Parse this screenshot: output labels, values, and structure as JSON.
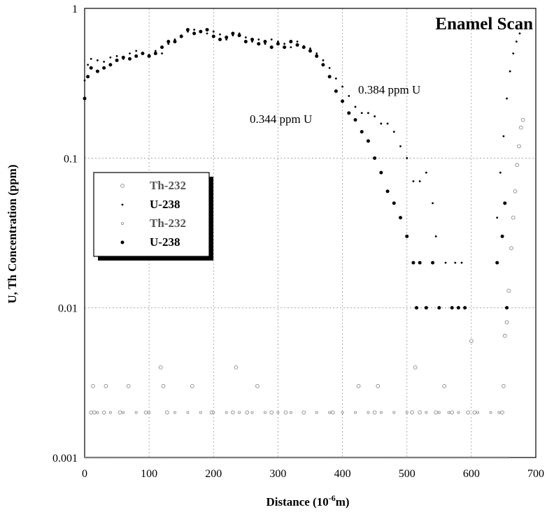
{
  "chart_data": {
    "type": "scatter",
    "title": "Enamel Scan",
    "xlabel_main": "Distance (10",
    "xlabel_sup": "-6",
    "xlabel_end": "m)",
    "ylabel": "U, Th Concentration (ppm)",
    "xlim": [
      0,
      700
    ],
    "ylim": [
      0.001,
      1
    ],
    "y_scale": "log",
    "grid": true,
    "legend_position": "left-middle",
    "x_ticks": [
      "0",
      "100",
      "200",
      "300",
      "400",
      "500",
      "600",
      "700"
    ],
    "y_ticks": [
      "0.001",
      "0.01",
      "0.1",
      "1"
    ],
    "annotations": [
      "0.384 ppm U",
      "0.344 ppm U"
    ],
    "colors": {
      "th": "#888888",
      "u": "#000000",
      "grid": "#999999"
    },
    "series": [
      {
        "name": "Th-232",
        "marker": "open-circle",
        "points": [
          [
            10,
            0.002
          ],
          [
            13,
            0.003
          ],
          [
            15,
            0.002
          ],
          [
            30,
            0.002
          ],
          [
            33,
            0.003
          ],
          [
            55,
            0.002
          ],
          [
            68,
            0.003
          ],
          [
            95,
            0.002
          ],
          [
            118,
            0.004
          ],
          [
            122,
            0.003
          ],
          [
            128,
            0.002
          ],
          [
            167,
            0.003
          ],
          [
            197,
            0.002
          ],
          [
            230,
            0.002
          ],
          [
            235,
            0.004
          ],
          [
            252,
            0.002
          ],
          [
            268,
            0.003
          ],
          [
            290,
            0.002
          ],
          [
            312,
            0.002
          ],
          [
            340,
            0.002
          ],
          [
            385,
            0.002
          ],
          [
            425,
            0.003
          ],
          [
            450,
            0.002
          ],
          [
            455,
            0.003
          ],
          [
            508,
            0.002
          ],
          [
            513,
            0.004
          ],
          [
            520,
            0.002
          ],
          [
            545,
            0.002
          ],
          [
            558,
            0.003
          ],
          [
            570,
            0.002
          ],
          [
            595,
            0.002
          ],
          [
            600,
            0.006
          ],
          [
            605,
            0.002
          ],
          [
            648,
            0.002
          ],
          [
            650,
            0.003
          ],
          [
            652,
            0.0065
          ],
          [
            655,
            0.008
          ],
          [
            658,
            0.013
          ],
          [
            662,
            0.025
          ],
          [
            665,
            0.04
          ],
          [
            668,
            0.06
          ],
          [
            671,
            0.09
          ],
          [
            674,
            0.12
          ],
          [
            677,
            0.16
          ],
          [
            680,
            0.18
          ]
        ],
        "baseline": {
          "y": 0.001,
          "x_from": 0,
          "x_to": 660
        }
      },
      {
        "name": "U-238",
        "marker": "small-dot",
        "points": [
          [
            0,
            0.33
          ],
          [
            5,
            0.42
          ],
          [
            10,
            0.46
          ],
          [
            20,
            0.45
          ],
          [
            30,
            0.44
          ],
          [
            40,
            0.47
          ],
          [
            50,
            0.48
          ],
          [
            60,
            0.46
          ],
          [
            70,
            0.5
          ],
          [
            80,
            0.52
          ],
          [
            90,
            0.5
          ],
          [
            100,
            0.49
          ],
          [
            110,
            0.52
          ],
          [
            120,
            0.5
          ],
          [
            130,
            0.58
          ],
          [
            140,
            0.62
          ],
          [
            150,
            0.66
          ],
          [
            160,
            0.7
          ],
          [
            170,
            0.72
          ],
          [
            180,
            0.7
          ],
          [
            190,
            0.68
          ],
          [
            200,
            0.7
          ],
          [
            210,
            0.67
          ],
          [
            220,
            0.62
          ],
          [
            230,
            0.66
          ],
          [
            240,
            0.68
          ],
          [
            250,
            0.64
          ],
          [
            260,
            0.6
          ],
          [
            270,
            0.62
          ],
          [
            280,
            0.58
          ],
          [
            290,
            0.62
          ],
          [
            300,
            0.6
          ],
          [
            310,
            0.58
          ],
          [
            320,
            0.55
          ],
          [
            330,
            0.6
          ],
          [
            340,
            0.56
          ],
          [
            350,
            0.54
          ],
          [
            360,
            0.5
          ],
          [
            370,
            0.45
          ],
          [
            380,
            0.4
          ],
          [
            390,
            0.34
          ],
          [
            400,
            0.3
          ],
          [
            410,
            0.26
          ],
          [
            420,
            0.22
          ],
          [
            430,
            0.2
          ],
          [
            440,
            0.2
          ],
          [
            450,
            0.19
          ],
          [
            460,
            0.17
          ],
          [
            470,
            0.17
          ],
          [
            480,
            0.15
          ],
          [
            490,
            0.12
          ],
          [
            500,
            0.1
          ],
          [
            510,
            0.07
          ],
          [
            520,
            0.07
          ],
          [
            530,
            0.08
          ],
          [
            540,
            0.05
          ],
          [
            545,
            0.03
          ],
          [
            560,
            0.02
          ],
          [
            575,
            0.02
          ],
          [
            585,
            0.02
          ],
          [
            640,
            0.04
          ],
          [
            645,
            0.08
          ],
          [
            650,
            0.14
          ],
          [
            655,
            0.25
          ],
          [
            660,
            0.38
          ],
          [
            665,
            0.5
          ],
          [
            670,
            0.6
          ],
          [
            675,
            0.68
          ]
        ]
      },
      {
        "name": "Th-232",
        "marker": "small-open-circle",
        "points": [
          [
            20,
            0.002
          ],
          [
            40,
            0.002
          ],
          [
            60,
            0.002
          ],
          [
            80,
            0.002
          ],
          [
            100,
            0.002
          ],
          [
            140,
            0.002
          ],
          [
            160,
            0.002
          ],
          [
            180,
            0.002
          ],
          [
            200,
            0.002
          ],
          [
            220,
            0.002
          ],
          [
            240,
            0.002
          ],
          [
            260,
            0.002
          ],
          [
            280,
            0.002
          ],
          [
            300,
            0.002
          ],
          [
            320,
            0.002
          ],
          [
            360,
            0.002
          ],
          [
            380,
            0.002
          ],
          [
            400,
            0.002
          ],
          [
            420,
            0.002
          ],
          [
            440,
            0.002
          ],
          [
            460,
            0.002
          ],
          [
            480,
            0.002
          ],
          [
            500,
            0.002
          ],
          [
            530,
            0.002
          ],
          [
            550,
            0.002
          ],
          [
            565,
            0.002
          ],
          [
            580,
            0.002
          ],
          [
            610,
            0.002
          ],
          [
            630,
            0.002
          ],
          [
            643,
            0.002
          ]
        ]
      },
      {
        "name": "U-238",
        "marker": "large-dot",
        "points": [
          [
            0,
            0.25
          ],
          [
            5,
            0.35
          ],
          [
            10,
            0.4
          ],
          [
            20,
            0.38
          ],
          [
            30,
            0.4
          ],
          [
            40,
            0.42
          ],
          [
            50,
            0.45
          ],
          [
            60,
            0.47
          ],
          [
            70,
            0.46
          ],
          [
            80,
            0.48
          ],
          [
            90,
            0.5
          ],
          [
            100,
            0.48
          ],
          [
            110,
            0.5
          ],
          [
            120,
            0.55
          ],
          [
            130,
            0.6
          ],
          [
            140,
            0.6
          ],
          [
            150,
            0.65
          ],
          [
            160,
            0.72
          ],
          [
            170,
            0.68
          ],
          [
            180,
            0.7
          ],
          [
            190,
            0.72
          ],
          [
            200,
            0.65
          ],
          [
            210,
            0.62
          ],
          [
            220,
            0.64
          ],
          [
            230,
            0.68
          ],
          [
            240,
            0.66
          ],
          [
            250,
            0.6
          ],
          [
            260,
            0.62
          ],
          [
            270,
            0.58
          ],
          [
            280,
            0.6
          ],
          [
            290,
            0.55
          ],
          [
            300,
            0.58
          ],
          [
            310,
            0.55
          ],
          [
            320,
            0.6
          ],
          [
            330,
            0.57
          ],
          [
            340,
            0.55
          ],
          [
            350,
            0.52
          ],
          [
            360,
            0.48
          ],
          [
            370,
            0.42
          ],
          [
            380,
            0.35
          ],
          [
            390,
            0.28
          ],
          [
            400,
            0.24
          ],
          [
            410,
            0.2
          ],
          [
            420,
            0.18
          ],
          [
            430,
            0.15
          ],
          [
            440,
            0.13
          ],
          [
            450,
            0.1
          ],
          [
            460,
            0.08
          ],
          [
            470,
            0.06
          ],
          [
            480,
            0.05
          ],
          [
            490,
            0.04
          ],
          [
            500,
            0.03
          ],
          [
            510,
            0.02
          ],
          [
            515,
            0.01
          ],
          [
            520,
            0.02
          ],
          [
            530,
            0.01
          ],
          [
            540,
            0.02
          ],
          [
            550,
            0.01
          ],
          [
            570,
            0.01
          ],
          [
            580,
            0.01
          ],
          [
            590,
            0.01
          ],
          [
            640,
            0.02
          ],
          [
            648,
            0.03
          ],
          [
            652,
            0.05
          ],
          [
            655,
            0.01
          ]
        ]
      }
    ]
  }
}
